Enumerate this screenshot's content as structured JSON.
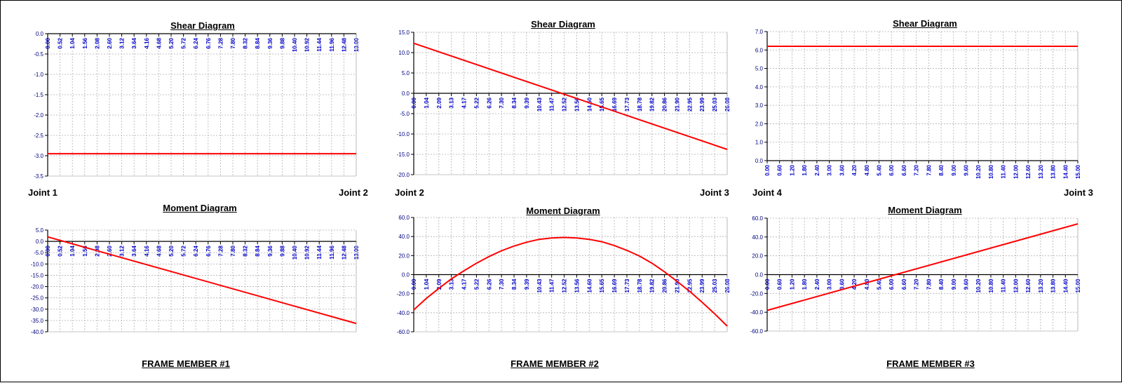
{
  "colors": {
    "curve": "#ff0000",
    "axis": "#000000",
    "grid": "#b0b0b0",
    "tick_label_x": "#0000cc",
    "tick_label_y": "#000080"
  },
  "members": [
    {
      "label": "FRAME MEMBER #1",
      "left_joint": "Joint 1",
      "right_joint": "Joint 2"
    },
    {
      "label": "FRAME MEMBER #2",
      "left_joint": "Joint 2",
      "right_joint": "Joint 3"
    },
    {
      "label": "FRAME MEMBER #3",
      "left_joint": "Joint 4",
      "right_joint": "Joint 3"
    }
  ],
  "chart_data": [
    {
      "type": "line",
      "title": "Shear Diagram",
      "member": 1,
      "xticks": [
        "0.00",
        "0.52",
        "1.04",
        "1.56",
        "2.08",
        "2.60",
        "3.12",
        "3.64",
        "4.16",
        "4.68",
        "5.20",
        "5.72",
        "6.24",
        "6.76",
        "7.28",
        "7.80",
        "8.32",
        "8.84",
        "9.36",
        "9.88",
        "10.40",
        "10.92",
        "11.44",
        "11.96",
        "12.48",
        "13.00"
      ],
      "xlim": [
        0,
        13.0
      ],
      "ylim": [
        -3.5,
        0.0
      ],
      "yticks": [
        "0.0",
        "-0.5",
        "-1.0",
        "-1.5",
        "-2.0",
        "-2.5",
        "-3.0",
        "-3.5"
      ],
      "grid": true,
      "series": [
        {
          "x": [
            0,
            13.0
          ],
          "y": [
            -2.95,
            -2.95
          ]
        }
      ]
    },
    {
      "type": "line",
      "title": "Moment Diagram",
      "member": 1,
      "xticks": [
        "0.00",
        "0.52",
        "1.04",
        "1.56",
        "2.08",
        "2.60",
        "3.12",
        "3.64",
        "4.16",
        "4.68",
        "5.20",
        "5.72",
        "6.24",
        "6.76",
        "7.28",
        "7.80",
        "8.32",
        "8.84",
        "9.36",
        "9.88",
        "10.40",
        "10.92",
        "11.44",
        "11.96",
        "12.48",
        "13.00"
      ],
      "xlim": [
        0,
        13.0
      ],
      "ylim": [
        -40.0,
        5.0
      ],
      "yticks": [
        "5.0",
        "0.0",
        "-5.0",
        "-10.0",
        "-15.0",
        "-20.0",
        "-25.0",
        "-30.0",
        "-35.0",
        "-40.0"
      ],
      "grid": true,
      "series": [
        {
          "x": [
            0,
            13.0
          ],
          "y": [
            2.0,
            -36.3
          ]
        }
      ]
    },
    {
      "type": "line",
      "title": "Shear Diagram",
      "member": 2,
      "xticks": [
        "0.00",
        "1.04",
        "2.09",
        "3.13",
        "4.17",
        "5.22",
        "6.26",
        "7.30",
        "8.34",
        "9.39",
        "10.43",
        "11.47",
        "12.52",
        "13.56",
        "14.60",
        "15.65",
        "16.69",
        "17.73",
        "18.78",
        "19.82",
        "20.86",
        "21.90",
        "22.95",
        "23.99",
        "25.03",
        "26.08"
      ],
      "xlim": [
        0,
        26.08
      ],
      "ylim": [
        -20.0,
        15.0
      ],
      "yticks": [
        "15.0",
        "10.0",
        "5.0",
        "0.0",
        "-5.0",
        "-10.0",
        "-15.0",
        "-20.0"
      ],
      "grid": true,
      "series": [
        {
          "x": [
            0,
            26.08
          ],
          "y": [
            12.3,
            -13.8
          ]
        }
      ]
    },
    {
      "type": "line",
      "title": "Moment Diagram",
      "member": 2,
      "xticks": [
        "0.00",
        "1.04",
        "2.09",
        "3.13",
        "4.17",
        "5.22",
        "6.26",
        "7.30",
        "8.34",
        "9.39",
        "10.43",
        "11.47",
        "12.52",
        "13.56",
        "14.60",
        "15.65",
        "16.69",
        "17.73",
        "18.78",
        "19.82",
        "20.86",
        "21.90",
        "22.95",
        "23.99",
        "25.03",
        "26.08"
      ],
      "xlim": [
        0,
        26.08
      ],
      "ylim": [
        -60.0,
        60.0
      ],
      "yticks": [
        "60.0",
        "40.0",
        "20.0",
        "0.0",
        "-20.0",
        "-40.0",
        "-60.0"
      ],
      "grid": true,
      "series": [
        {
          "x": [
            0,
            1.04,
            2.09,
            3.13,
            4.17,
            5.22,
            6.26,
            7.3,
            8.34,
            9.39,
            10.43,
            11.47,
            12.52,
            13.56,
            14.6,
            15.65,
            16.69,
            17.73,
            18.78,
            19.82,
            20.86,
            21.9,
            22.95,
            23.99,
            25.03,
            26.08
          ],
          "y": [
            -37.0,
            -25.0,
            -14.5,
            -4.5,
            4.0,
            12.0,
            19.0,
            25.0,
            30.0,
            34.0,
            37.0,
            38.5,
            39.0,
            38.5,
            37.0,
            34.5,
            30.5,
            25.5,
            19.5,
            12.0,
            3.0,
            -7.0,
            -17.5,
            -29.0,
            -41.0,
            -54.0
          ]
        }
      ]
    },
    {
      "type": "line",
      "title": "Shear Diagram",
      "member": 3,
      "xticks": [
        "0.00",
        "0.60",
        "1.20",
        "1.80",
        "2.40",
        "3.00",
        "3.60",
        "4.20",
        "4.80",
        "5.40",
        "6.00",
        "6.60",
        "7.20",
        "7.80",
        "8.40",
        "9.00",
        "9.60",
        "10.20",
        "10.80",
        "11.40",
        "12.00",
        "12.60",
        "13.20",
        "13.80",
        "14.40",
        "15.00"
      ],
      "xlim": [
        0,
        15.0
      ],
      "ylim": [
        0.0,
        7.0
      ],
      "yticks": [
        "7.0",
        "6.0",
        "5.0",
        "4.0",
        "3.0",
        "2.0",
        "1.0",
        "0.0"
      ],
      "grid": true,
      "series": [
        {
          "x": [
            0,
            15.0
          ],
          "y": [
            6.2,
            6.2
          ]
        }
      ]
    },
    {
      "type": "line",
      "title": "Moment Diagram",
      "member": 3,
      "xticks": [
        "0.00",
        "0.60",
        "1.20",
        "1.80",
        "2.40",
        "3.00",
        "3.60",
        "4.20",
        "4.80",
        "5.40",
        "6.00",
        "6.60",
        "7.20",
        "7.80",
        "8.40",
        "9.00",
        "9.60",
        "10.20",
        "10.80",
        "11.40",
        "12.00",
        "12.60",
        "13.20",
        "13.80",
        "14.40",
        "15.00"
      ],
      "xlim": [
        0,
        15.0
      ],
      "ylim": [
        -60.0,
        60.0
      ],
      "yticks": [
        "60.0",
        "40.0",
        "20.0",
        "0.0",
        "-20.0",
        "-40.0",
        "-60.0"
      ],
      "grid": true,
      "series": [
        {
          "x": [
            0,
            15.0
          ],
          "y": [
            -38.0,
            54.0
          ]
        }
      ]
    }
  ]
}
